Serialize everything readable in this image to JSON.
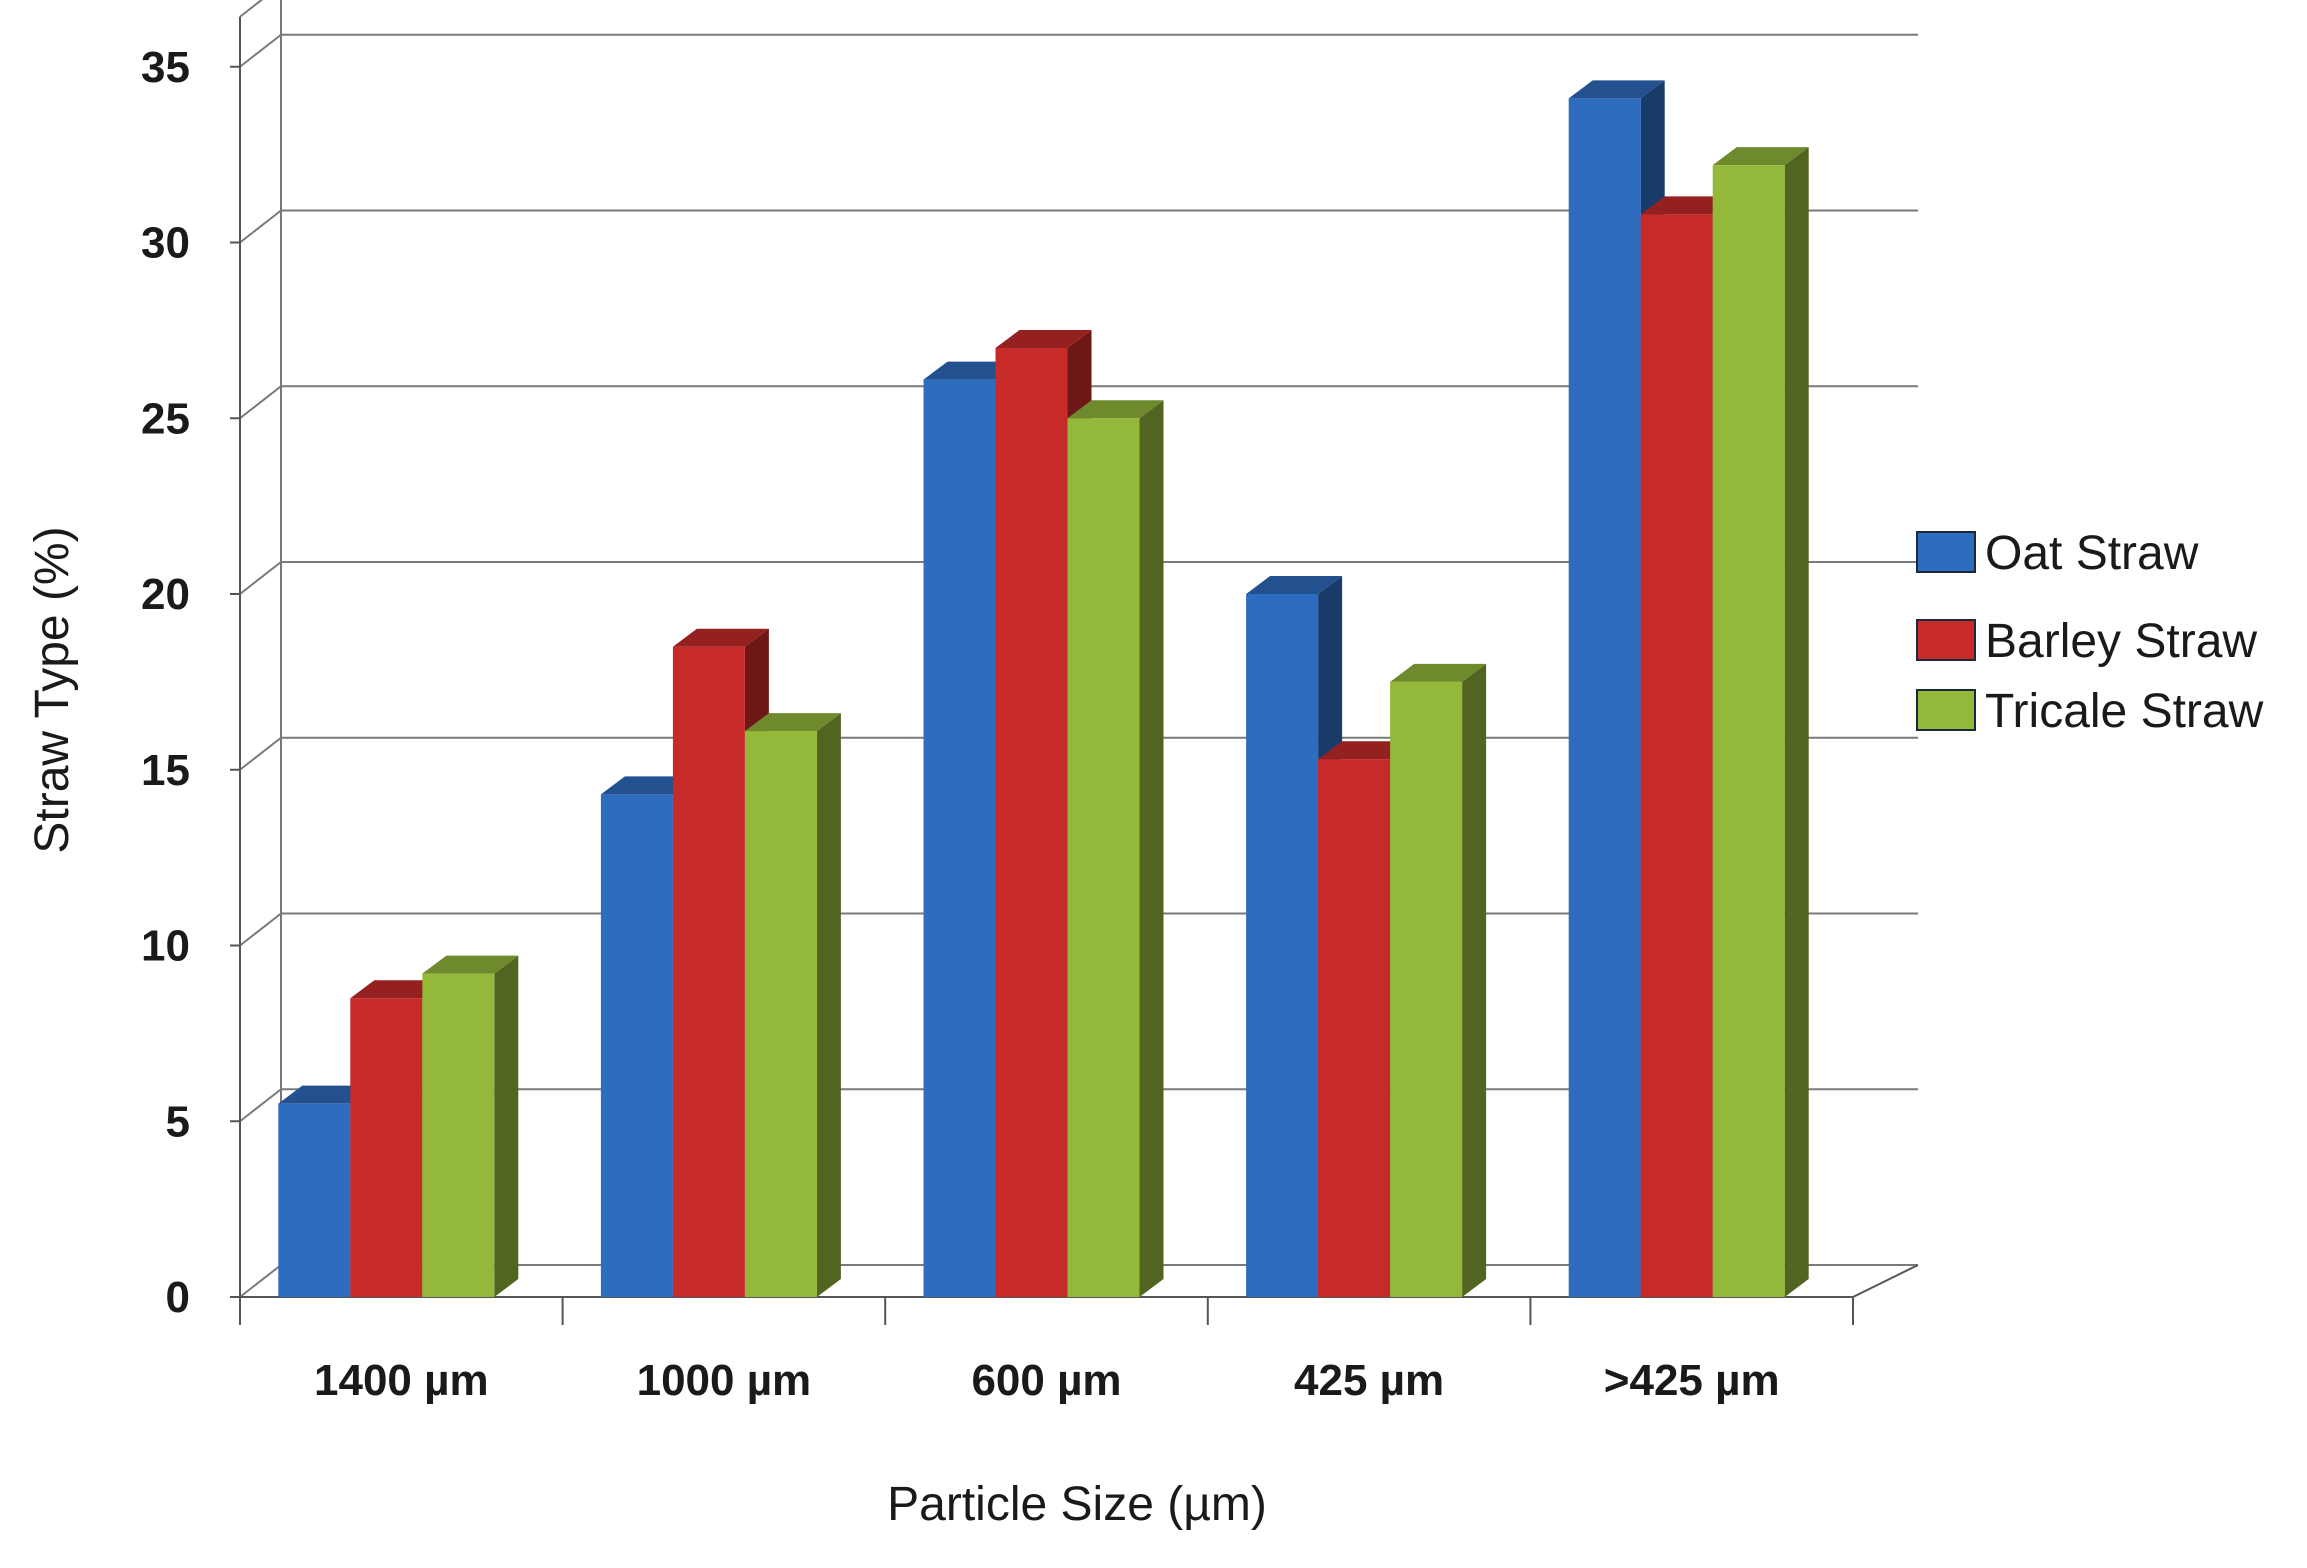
{
  "chart_data": {
    "type": "bar",
    "title": "",
    "xlabel": "Particle Size (µm)",
    "ylabel": "Straw Type (%)",
    "ylim": [
      0,
      35
    ],
    "yticks": [
      0,
      5,
      10,
      15,
      20,
      25,
      30,
      35
    ],
    "grid": true,
    "legend_position": "right",
    "categories": [
      "1400 µm",
      "1000 µm",
      "600 µm",
      "425 µm",
      ">425 µm"
    ],
    "series": [
      {
        "name": "Oat Straw",
        "color": "#2e6cc0",
        "values": [
          5.5,
          14.3,
          26.1,
          20.0,
          34.1
        ]
      },
      {
        "name": "Barley Straw",
        "color": "#c62b2a",
        "values": [
          8.5,
          18.5,
          27.0,
          15.3,
          30.8
        ]
      },
      {
        "name": "Tricale Straw",
        "color": "#93b83a",
        "values": [
          9.2,
          16.1,
          25.0,
          17.5,
          32.2
        ]
      }
    ]
  }
}
